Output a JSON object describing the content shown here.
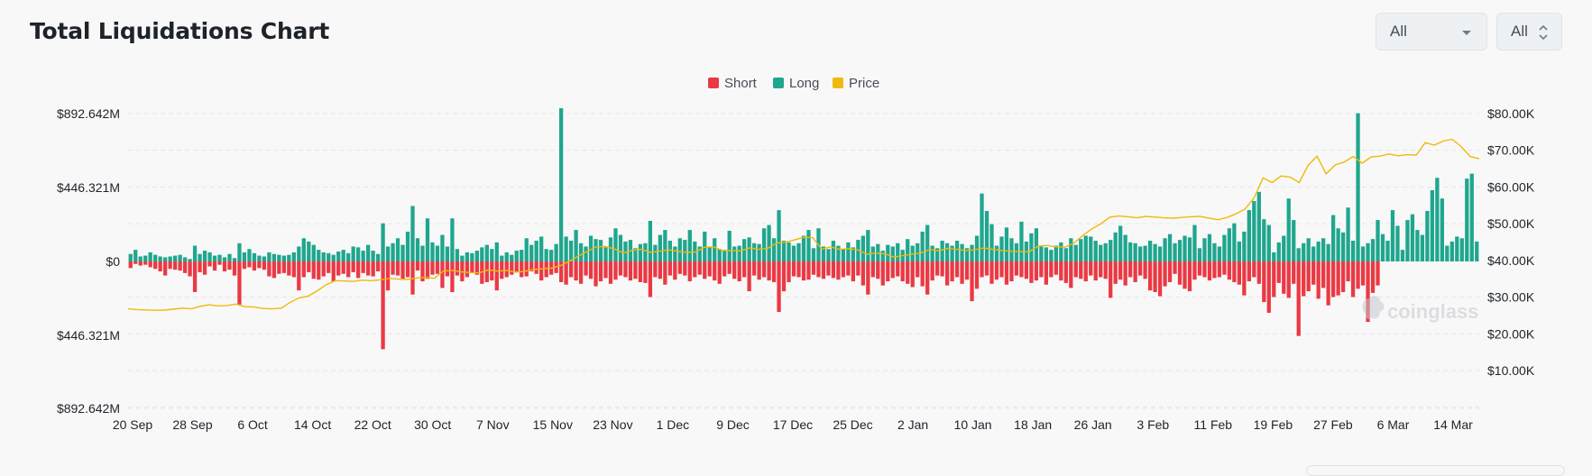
{
  "header": {
    "title": "Total Liquidations Chart",
    "select_coin": "All",
    "select_range": "All"
  },
  "watermark": "coinglass",
  "colors": {
    "short": "#ea3943",
    "long": "#1fa68e",
    "price": "#f0b90b",
    "grid": "#e4e6ea"
  },
  "chart_data": {
    "type": "bar",
    "legend": [
      "Short",
      "Long",
      "Price"
    ],
    "legend_position": "top-center",
    "grid": true,
    "y_left_ticks": [
      "$892.642M",
      "$446.321M",
      "$0",
      "$446.321M",
      "$892.642M"
    ],
    "y_right_ticks": [
      "$80.00K",
      "$70.00K",
      "$60.00K",
      "$50.00K",
      "$40.00K",
      "$30.00K",
      "$20.00K",
      "$10.00K"
    ],
    "y_left_range_musd": [
      -892.642,
      892.642
    ],
    "y_right_range_usd": [
      0,
      80000
    ],
    "x_ticks": [
      "20 Sep",
      "28 Sep",
      "6 Oct",
      "14 Oct",
      "22 Oct",
      "30 Oct",
      "7 Nov",
      "15 Nov",
      "23 Nov",
      "1 Dec",
      "9 Dec",
      "17 Dec",
      "25 Dec",
      "2 Jan",
      "10 Jan",
      "18 Jan",
      "26 Jan",
      "3 Feb",
      "11 Feb",
      "19 Feb",
      "27 Feb",
      "6 Mar",
      "14 Mar"
    ],
    "series": [
      {
        "name": "Long",
        "unit": "M USD",
        "values": [
          45,
          70,
          30,
          35,
          55,
          40,
          30,
          25,
          30,
          35,
          40,
          25,
          15,
          95,
          45,
          65,
          55,
          35,
          40,
          25,
          45,
          20,
          110,
          55,
          75,
          50,
          35,
          30,
          55,
          45,
          40,
          35,
          40,
          55,
          90,
          140,
          120,
          100,
          70,
          55,
          50,
          40,
          60,
          70,
          50,
          90,
          85,
          65,
          100,
          65,
          45,
          230,
          90,
          110,
          140,
          100,
          180,
          335,
          140,
          95,
          260,
          115,
          95,
          160,
          90,
          260,
          75,
          35,
          55,
          50,
          65,
          85,
          100,
          75,
          115,
          35,
          55,
          40,
          65,
          70,
          140,
          100,
          125,
          150,
          75,
          70,
          105,
          925,
          150,
          125,
          190,
          110,
          90,
          155,
          135,
          130,
          85,
          145,
          200,
          160,
          120,
          130,
          80,
          105,
          110,
          245,
          100,
          160,
          190,
          125,
          90,
          140,
          130,
          190,
          120,
          90,
          180,
          85,
          140,
          75,
          70,
          185,
          90,
          95,
          135,
          145,
          110,
          105,
          200,
          220,
          140,
          310,
          125,
          115,
          95,
          110,
          155,
          190,
          80,
          200,
          90,
          75,
          125,
          95,
          75,
          115,
          85,
          130,
          155,
          190,
          90,
          105,
          65,
          100,
          90,
          110,
          70,
          135,
          95,
          110,
          180,
          220,
          95,
          80,
          125,
          110,
          95,
          125,
          105,
          80,
          100,
          155,
          410,
          305,
          225,
          95,
          150,
          205,
          140,
          110,
          240,
          120,
          170,
          200,
          90,
          85,
          70,
          95,
          115,
          80,
          140,
          100,
          135,
          155,
          150,
          125,
          100,
          110,
          130,
          175,
          215,
          160,
          115,
          110,
          90,
          95,
          125,
          105,
          90,
          140,
          165,
          110,
          130,
          155,
          145,
          220,
          80,
          140,
          165,
          110,
          90,
          160,
          200,
          230,
          120,
          180,
          310,
          365,
          420,
          255,
          220,
          55,
          115,
          155,
          380,
          250,
          80,
          110,
          140,
          90,
          120,
          140,
          105,
          280,
          200,
          175,
          325,
          125,
          895,
          90,
          110,
          135,
          250,
          165,
          125,
          310,
          215,
          70,
          250,
          285,
          190,
          160,
          305,
          430,
          505,
          380,
          95,
          120,
          150,
          140,
          500,
          530,
          120
        ]
      },
      {
        "name": "Short",
        "unit": "M USD",
        "values": [
          40,
          15,
          25,
          20,
          35,
          45,
          60,
          85,
          45,
          50,
          55,
          70,
          90,
          185,
          65,
          80,
          30,
          55,
          20,
          60,
          50,
          85,
          260,
          45,
          35,
          55,
          40,
          50,
          90,
          100,
          75,
          70,
          85,
          95,
          175,
          95,
          65,
          105,
          110,
          90,
          70,
          120,
          85,
          75,
          95,
          65,
          100,
          70,
          85,
          90,
          60,
          530,
          175,
          80,
          85,
          110,
          95,
          200,
          55,
          120,
          105,
          80,
          75,
          160,
          90,
          185,
          85,
          120,
          95,
          65,
          80,
          135,
          125,
          115,
          175,
          105,
          95,
          80,
          60,
          95,
          90,
          60,
          75,
          115,
          95,
          80,
          70,
          125,
          140,
          95,
          115,
          135,
          85,
          105,
          150,
          120,
          100,
          135,
          110,
          85,
          95,
          115,
          105,
          125,
          130,
          215,
          95,
          105,
          140,
          85,
          110,
          75,
          85,
          120,
          95,
          80,
          105,
          90,
          115,
          135,
          90,
          75,
          105,
          120,
          95,
          180,
          85,
          110,
          95,
          115,
          125,
          305,
          180,
          125,
          90,
          95,
          115,
          110,
          80,
          95,
          105,
          85,
          100,
          110,
          95,
          85,
          120,
          85,
          145,
          200,
          95,
          105,
          145,
          120,
          100,
          90,
          120,
          135,
          155,
          95,
          150,
          200,
          115,
          85,
          90,
          145,
          120,
          95,
          135,
          110,
          240,
          165,
          95,
          85,
          135,
          110,
          95,
          140,
          120,
          85,
          95,
          105,
          130,
          115,
          95,
          140,
          95,
          80,
          115,
          130,
          160,
          95,
          105,
          120,
          85,
          115,
          95,
          105,
          220,
          135,
          110,
          145,
          95,
          125,
          85,
          105,
          175,
          185,
          210,
          150,
          125,
          75,
          140,
          165,
          180,
          110,
          85,
          95,
          115,
          100,
          95,
          80,
          110,
          125,
          140,
          205,
          120,
          95,
          135,
          245,
          310,
          215,
          130,
          195,
          220,
          135,
          450,
          210,
          180,
          140,
          225,
          160,
          265,
          215,
          205,
          185,
          120,
          215,
          165,
          145,
          365,
          190,
          145
        ]
      },
      {
        "name": "Price",
        "unit": "USD",
        "values": [
          26800,
          26600,
          26500,
          26400,
          26450,
          26700,
          27000,
          26800,
          27500,
          27900,
          27600,
          27700,
          28100,
          27400,
          27300,
          26900,
          26800,
          27000,
          28600,
          29800,
          30300,
          31700,
          33400,
          34500,
          34400,
          34300,
          34600,
          34500,
          34700,
          35100,
          34900,
          34800,
          35200,
          35400,
          35100,
          37100,
          37300,
          36900,
          36700,
          36600,
          37400,
          37100,
          37300,
          36800,
          37000,
          37500,
          37700,
          37900,
          38600,
          39800,
          41200,
          42500,
          43700,
          43800,
          43100,
          42000,
          42800,
          43000,
          42200,
          42500,
          42900,
          42500,
          42200,
          42300,
          43600,
          43700,
          42700,
          42700,
          42600,
          43400,
          43000,
          43300,
          44700,
          45000,
          45600,
          46300,
          46200,
          43100,
          43700,
          43000,
          43200,
          42900,
          41700,
          42000,
          41800,
          40900,
          41300,
          41700,
          42000,
          43000,
          42600,
          43300,
          43000,
          42700,
          42900,
          43400,
          43000,
          42700,
          42500,
          42400,
          42300,
          43900,
          44100,
          43700,
          43600,
          44700,
          46800,
          48600,
          50000,
          51800,
          52100,
          51900,
          51600,
          52000,
          51800,
          51600,
          51500,
          51700,
          51900,
          52000,
          51500,
          51100,
          51700,
          52700,
          54000,
          57000,
          62500,
          61200,
          63000,
          62700,
          61200,
          65900,
          68400,
          63600,
          66000,
          66800,
          68300,
          66500,
          68200,
          68400,
          69000,
          68500,
          68800,
          68700,
          72100,
          71400,
          72500,
          73000,
          71000,
          68300,
          67700
        ]
      }
    ]
  }
}
